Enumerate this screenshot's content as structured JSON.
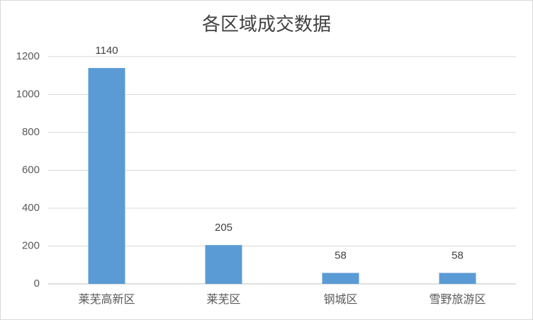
{
  "chart_data": {
    "type": "bar",
    "title": "各区域成交数据",
    "categories": [
      "莱芜高新区",
      "莱芜区",
      "钢城区",
      "雪野旅游区"
    ],
    "values": [
      1140,
      205,
      58,
      58
    ],
    "color": "#5b9bd5",
    "ylim": [
      0,
      1200
    ],
    "yticks": [
      0,
      200,
      400,
      600,
      800,
      1000,
      1200
    ],
    "grid": true,
    "data_labels": true
  }
}
